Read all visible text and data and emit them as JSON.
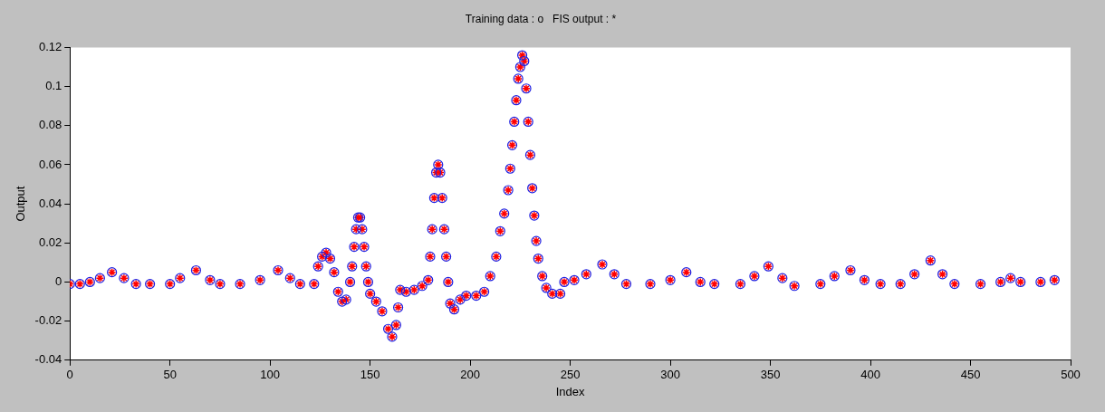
{
  "chart_data": {
    "type": "scatter",
    "title": "Training data : o   FIS output : *",
    "xlabel": "Index",
    "ylabel": "Output",
    "x": [
      0,
      5,
      10,
      15,
      21,
      27,
      33,
      40,
      50,
      55,
      63,
      70,
      75,
      85,
      95,
      104,
      110,
      115,
      122,
      124,
      126,
      128,
      130,
      132,
      134,
      136,
      138,
      140,
      141,
      142,
      143,
      144,
      145,
      146,
      147,
      148,
      149,
      150,
      153,
      156,
      159,
      161,
      163,
      164,
      165,
      168,
      172,
      176,
      179,
      180,
      181,
      182,
      183,
      184,
      185,
      186,
      187,
      188,
      189,
      190,
      192,
      195,
      198,
      203,
      207,
      210,
      213,
      215,
      217,
      219,
      220,
      221,
      222,
      223,
      224,
      225,
      226,
      227,
      228,
      229,
      230,
      231,
      232,
      233,
      234,
      236,
      238,
      241,
      245,
      247,
      252,
      258,
      266,
      272,
      278,
      290,
      300,
      308,
      315,
      322,
      335,
      342,
      349,
      356,
      362,
      375,
      382,
      390,
      397,
      405,
      415,
      422,
      430,
      436,
      442,
      455,
      465,
      470,
      475,
      485,
      492
    ],
    "series": [
      {
        "color": "#2020e0",
        "marker": "circle",
        "values": [
          -0.001,
          -0.001,
          0,
          0.002,
          0.005,
          0.002,
          -0.001,
          -0.001,
          -0.001,
          0.002,
          0.006,
          0.001,
          -0.001,
          -0.001,
          0.001,
          0.006,
          0.002,
          -0.001,
          -0.001,
          0.008,
          0.013,
          0.015,
          0.012,
          0.005,
          -0.005,
          -0.01,
          -0.009,
          0,
          0.008,
          0.018,
          0.027,
          0.033,
          0.033,
          0.027,
          0.018,
          0.008,
          0,
          -0.006,
          -0.01,
          -0.015,
          -0.024,
          -0.028,
          -0.022,
          -0.013,
          -0.004,
          -0.005,
          -0.004,
          -0.002,
          0.001,
          0.013,
          0.027,
          0.043,
          0.056,
          0.06,
          0.056,
          0.043,
          0.027,
          0.013,
          0,
          -0.011,
          -0.014,
          -0.009,
          -0.007,
          -0.007,
          -0.005,
          0.003,
          0.013,
          0.026,
          0.035,
          0.047,
          0.058,
          0.07,
          0.082,
          0.093,
          0.104,
          0.11,
          0.116,
          0.113,
          0.099,
          0.082,
          0.065,
          0.048,
          0.034,
          0.021,
          0.012,
          0.003,
          -0.003,
          -0.006,
          -0.006,
          0,
          0.001,
          0.004,
          0.009,
          0.004,
          -0.001,
          -0.001,
          0.001,
          0.005,
          0,
          -0.001,
          -0.001,
          0.003,
          0.008,
          0.002,
          -0.002,
          -0.001,
          0.003,
          0.006,
          0.001,
          -0.001,
          -0.001,
          0.004,
          0.011,
          0.004,
          -0.001,
          -0.001,
          0,
          0.002,
          0,
          0,
          0.001
        ]
      },
      {
        "color": "#ff0000",
        "marker": "cross",
        "values": [
          -0.001,
          -0.001,
          0,
          0.002,
          0.005,
          0.002,
          -0.001,
          -0.001,
          -0.001,
          0.002,
          0.006,
          0.001,
          -0.001,
          -0.001,
          0.001,
          0.006,
          0.002,
          -0.001,
          -0.001,
          0.008,
          0.013,
          0.015,
          0.012,
          0.005,
          -0.005,
          -0.01,
          -0.009,
          0,
          0.008,
          0.018,
          0.027,
          0.033,
          0.033,
          0.027,
          0.018,
          0.008,
          0,
          -0.006,
          -0.01,
          -0.015,
          -0.024,
          -0.028,
          -0.022,
          -0.013,
          -0.004,
          -0.005,
          -0.004,
          -0.002,
          0.001,
          0.013,
          0.027,
          0.043,
          0.056,
          0.06,
          0.056,
          0.043,
          0.027,
          0.013,
          0,
          -0.011,
          -0.014,
          -0.009,
          -0.007,
          -0.007,
          -0.005,
          0.003,
          0.013,
          0.026,
          0.035,
          0.047,
          0.058,
          0.07,
          0.082,
          0.093,
          0.104,
          0.11,
          0.116,
          0.113,
          0.099,
          0.082,
          0.065,
          0.048,
          0.034,
          0.021,
          0.012,
          0.003,
          -0.003,
          -0.006,
          -0.006,
          0,
          0.001,
          0.004,
          0.009,
          0.004,
          -0.001,
          -0.001,
          0.001,
          0.005,
          0,
          -0.001,
          -0.001,
          0.003,
          0.008,
          0.002,
          -0.002,
          -0.001,
          0.003,
          0.006,
          0.001,
          -0.001,
          -0.001,
          0.004,
          0.011,
          0.004,
          -0.001,
          -0.001,
          0,
          0.002,
          0,
          0,
          0.001
        ]
      }
    ],
    "xlim": [
      0,
      500
    ],
    "xticks": [
      0,
      50,
      100,
      150,
      200,
      250,
      300,
      350,
      400,
      450,
      500
    ],
    "ylim": [
      -0.04,
      0.12
    ],
    "yticks": [
      -0.04,
      -0.02,
      0,
      0.02,
      0.04,
      0.06,
      0.08,
      0.1,
      0.12
    ],
    "grid": false,
    "legend": false
  }
}
